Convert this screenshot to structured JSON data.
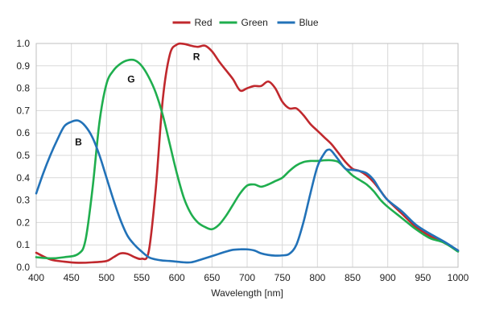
{
  "chart_data": {
    "type": "line",
    "title": "",
    "xlabel": "Wavelength [nm]",
    "ylabel": "",
    "xlim": [
      400,
      1000
    ],
    "ylim": [
      0,
      1.0
    ],
    "xticks": [
      "400",
      "450",
      "500",
      "550",
      "600",
      "650",
      "700",
      "750",
      "800",
      "850",
      "900",
      "950",
      "1000"
    ],
    "yticks": [
      "0.0",
      "0.1",
      "0.2",
      "0.3",
      "0.4",
      "0.5",
      "0.6",
      "0.7",
      "0.8",
      "0.9",
      "1.0"
    ],
    "grid": true,
    "legend_position": "top-center",
    "series": [
      {
        "name": "Red",
        "color": "#c0282d",
        "x": [
          400,
          420,
          440,
          460,
          480,
          500,
          510,
          520,
          530,
          540,
          550,
          560,
          570,
          580,
          590,
          600,
          610,
          620,
          630,
          640,
          650,
          660,
          670,
          680,
          690,
          700,
          710,
          720,
          730,
          740,
          750,
          760,
          770,
          780,
          790,
          800,
          810,
          820,
          830,
          840,
          850,
          860,
          870,
          880,
          890,
          900,
          920,
          940,
          960,
          980,
          1000
        ],
        "y": [
          0.065,
          0.035,
          0.025,
          0.02,
          0.022,
          0.028,
          0.045,
          0.062,
          0.06,
          0.045,
          0.038,
          0.07,
          0.35,
          0.75,
          0.95,
          0.995,
          0.998,
          0.99,
          0.985,
          0.99,
          0.965,
          0.92,
          0.88,
          0.84,
          0.79,
          0.8,
          0.81,
          0.81,
          0.83,
          0.8,
          0.74,
          0.71,
          0.71,
          0.68,
          0.64,
          0.61,
          0.58,
          0.55,
          0.51,
          0.47,
          0.44,
          0.43,
          0.41,
          0.38,
          0.34,
          0.3,
          0.24,
          0.18,
          0.14,
          0.11,
          0.075
        ]
      },
      {
        "name": "Green",
        "color": "#1fae4e",
        "x": [
          400,
          420,
          440,
          460,
          470,
          480,
          490,
          500,
          510,
          520,
          530,
          540,
          550,
          560,
          570,
          580,
          590,
          600,
          610,
          620,
          630,
          640,
          650,
          660,
          670,
          680,
          690,
          700,
          710,
          720,
          730,
          740,
          750,
          760,
          770,
          780,
          790,
          800,
          810,
          820,
          830,
          840,
          850,
          860,
          870,
          880,
          890,
          900,
          920,
          940,
          960,
          980,
          1000
        ],
        "y": [
          0.045,
          0.04,
          0.045,
          0.06,
          0.12,
          0.35,
          0.65,
          0.82,
          0.88,
          0.91,
          0.925,
          0.925,
          0.9,
          0.85,
          0.78,
          0.68,
          0.55,
          0.42,
          0.31,
          0.24,
          0.2,
          0.18,
          0.17,
          0.19,
          0.23,
          0.28,
          0.33,
          0.365,
          0.37,
          0.36,
          0.37,
          0.385,
          0.4,
          0.43,
          0.455,
          0.47,
          0.475,
          0.475,
          0.478,
          0.478,
          0.47,
          0.44,
          0.41,
          0.39,
          0.37,
          0.34,
          0.3,
          0.27,
          0.22,
          0.17,
          0.13,
          0.11,
          0.07
        ]
      },
      {
        "name": "Blue",
        "color": "#2272b8",
        "x": [
          400,
          410,
          420,
          430,
          440,
          450,
          460,
          470,
          480,
          490,
          500,
          510,
          520,
          530,
          540,
          550,
          560,
          570,
          580,
          590,
          600,
          610,
          620,
          630,
          640,
          650,
          660,
          670,
          680,
          690,
          700,
          710,
          720,
          730,
          740,
          750,
          760,
          770,
          780,
          790,
          800,
          810,
          815,
          820,
          830,
          840,
          850,
          860,
          870,
          880,
          890,
          900,
          920,
          940,
          960,
          980,
          1000
        ],
        "y": [
          0.33,
          0.42,
          0.5,
          0.57,
          0.63,
          0.65,
          0.655,
          0.63,
          0.58,
          0.5,
          0.4,
          0.3,
          0.21,
          0.14,
          0.1,
          0.07,
          0.045,
          0.035,
          0.03,
          0.028,
          0.025,
          0.022,
          0.022,
          0.03,
          0.04,
          0.05,
          0.06,
          0.07,
          0.078,
          0.08,
          0.08,
          0.075,
          0.062,
          0.055,
          0.052,
          0.053,
          0.06,
          0.1,
          0.2,
          0.33,
          0.45,
          0.51,
          0.525,
          0.52,
          0.48,
          0.44,
          0.435,
          0.43,
          0.42,
          0.39,
          0.34,
          0.3,
          0.25,
          0.19,
          0.15,
          0.115,
          0.075
        ]
      }
    ],
    "annotations": [
      {
        "text": "R",
        "x": 628,
        "y": 0.94,
        "color": "#111111"
      },
      {
        "text": "G",
        "x": 535,
        "y": 0.84,
        "color": "#111111"
      },
      {
        "text": "B",
        "x": 460,
        "y": 0.56,
        "color": "#111111"
      }
    ]
  }
}
